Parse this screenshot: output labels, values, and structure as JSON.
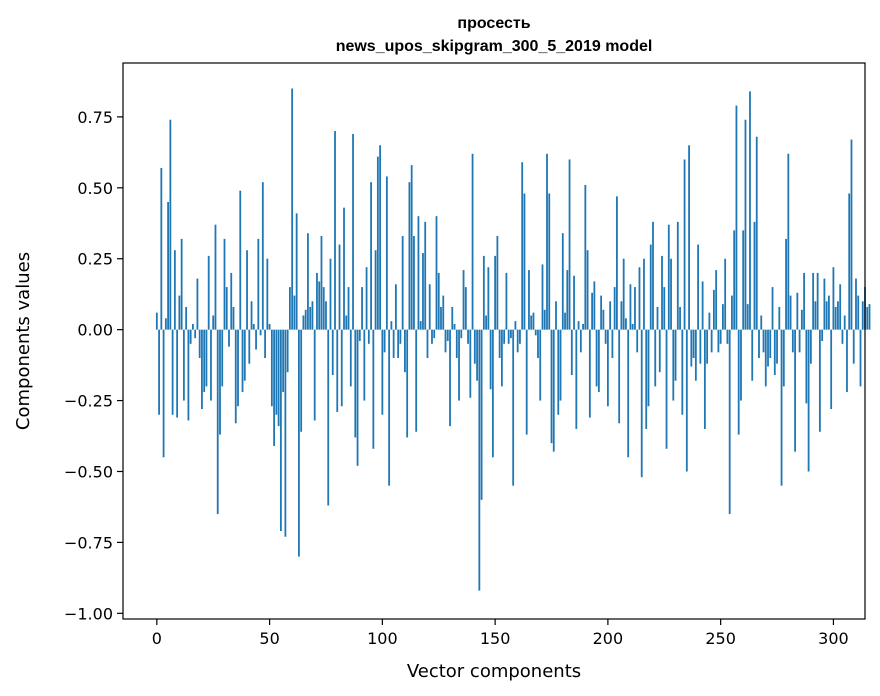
{
  "chart_data": {
    "type": "bar",
    "title_line1": "просесть",
    "title_line2": "news_upos_skipgram_300_5_2019 model",
    "xlabel": "Vector components",
    "ylabel": "Components values",
    "xlim": [
      -15,
      314
    ],
    "ylim": [
      -1.02,
      0.94
    ],
    "xticks": [
      0,
      50,
      100,
      150,
      200,
      250,
      300
    ],
    "yticks": [
      -1.0,
      -0.75,
      -0.5,
      -0.25,
      0.0,
      0.25,
      0.5,
      0.75
    ],
    "ytick_labels": [
      "−1.00",
      "−0.75",
      "−0.50",
      "−0.25",
      "0.00",
      "0.25",
      "0.50",
      "0.75"
    ],
    "bar_color": "#1f77b4",
    "grid": false,
    "values": [
      0.06,
      -0.3,
      0.57,
      -0.45,
      0.04,
      0.45,
      0.74,
      -0.3,
      0.28,
      -0.31,
      0.12,
      0.32,
      -0.25,
      0.08,
      -0.32,
      -0.05,
      0.02,
      -0.03,
      0.18,
      -0.1,
      -0.28,
      -0.22,
      -0.2,
      0.26,
      -0.25,
      0.05,
      0.37,
      -0.65,
      -0.37,
      -0.2,
      0.32,
      0.15,
      -0.06,
      0.2,
      0.08,
      -0.33,
      -0.27,
      0.49,
      -0.22,
      -0.18,
      0.28,
      -0.12,
      0.1,
      0.02,
      -0.07,
      0.32,
      -0.02,
      0.52,
      -0.1,
      0.25,
      0.02,
      -0.27,
      -0.41,
      -0.3,
      -0.34,
      -0.71,
      -0.22,
      -0.73,
      -0.15,
      0.15,
      0.85,
      0.12,
      0.41,
      -0.8,
      -0.36,
      0.05,
      0.07,
      0.34,
      0.08,
      0.1,
      -0.32,
      0.2,
      0.17,
      0.33,
      0.15,
      0.1,
      -0.62,
      0.25,
      -0.16,
      0.7,
      -0.29,
      0.3,
      -0.27,
      0.43,
      0.05,
      0.15,
      -0.2,
      0.69,
      -0.38,
      -0.48,
      -0.04,
      0.15,
      -0.25,
      0.22,
      -0.05,
      0.52,
      -0.42,
      0.28,
      0.61,
      0.65,
      -0.3,
      -0.08,
      0.54,
      -0.55,
      0.03,
      -0.1,
      0.16,
      -0.1,
      -0.05,
      0.33,
      -0.15,
      -0.38,
      0.52,
      0.58,
      0.33,
      -0.36,
      0.4,
      0.03,
      0.27,
      0.38,
      -0.1,
      0.16,
      -0.05,
      -0.03,
      0.4,
      0.2,
      0.08,
      0.12,
      -0.08,
      -0.04,
      -0.34,
      0.08,
      0.02,
      -0.1,
      -0.25,
      -0.03,
      0.21,
      0.15,
      -0.05,
      -0.24,
      0.62,
      -0.12,
      -0.18,
      -0.92,
      -0.6,
      0.26,
      0.05,
      0.22,
      -0.21,
      -0.45,
      0.26,
      0.33,
      -0.1,
      -0.2,
      -0.05,
      0.2,
      -0.05,
      -0.03,
      -0.55,
      0.03,
      -0.08,
      -0.05,
      0.59,
      0.48,
      -0.37,
      0.21,
      0.05,
      0.06,
      -0.02,
      -0.1,
      -0.25,
      0.23,
      0.07,
      0.62,
      0.48,
      -0.4,
      -0.43,
      0.1,
      -0.3,
      -0.25,
      0.34,
      0.06,
      0.21,
      0.6,
      -0.16,
      0.19,
      -0.35,
      0.03,
      -0.08,
      0.02,
      0.51,
      0.28,
      -0.31,
      0.13,
      0.17,
      -0.2,
      -0.22,
      0.12,
      0.07,
      -0.05,
      -0.27,
      0.1,
      -0.1,
      0.15,
      0.47,
      -0.33,
      0.1,
      0.25,
      0.04,
      -0.45,
      0.16,
      0.02,
      0.15,
      -0.08,
      0.22,
      -0.52,
      0.25,
      -0.35,
      -0.27,
      0.3,
      0.38,
      -0.2,
      0.08,
      -0.15,
      0.26,
      0.15,
      -0.42,
      0.37,
      0.25,
      -0.25,
      -0.18,
      0.38,
      0.08,
      -0.3,
      0.6,
      -0.5,
      0.65,
      -0.13,
      -0.1,
      -0.18,
      0.3,
      -0.12,
      0.17,
      -0.35,
      -0.12,
      0.06,
      -0.08,
      0.14,
      0.21,
      -0.08,
      -0.05,
      0.09,
      0.25,
      -0.05,
      -0.65,
      0.12,
      0.35,
      0.79,
      -0.37,
      -0.25,
      0.35,
      0.74,
      0.09,
      0.84,
      -0.18,
      0.38,
      0.68,
      -0.1,
      0.05,
      -0.08,
      -0.2,
      -0.13,
      -0.1,
      0.15,
      -0.16,
      -0.12,
      0.08,
      -0.55,
      -0.2,
      0.32,
      0.62,
      0.12,
      -0.08,
      -0.43,
      0.13,
      -0.08,
      0.07,
      0.2,
      -0.26,
      -0.5,
      -0.12,
      0.2,
      0.1,
      0.2,
      -0.36,
      -0.04,
      0.18,
      0.1,
      0.12,
      -0.28,
      0.22,
      0.08,
      0.1,
      0.16,
      -0.05,
      0.05,
      -0.22,
      0.48,
      0.67,
      -0.12,
      0.18,
      0.12,
      -0.2,
      0.1,
      0.15,
      0.08,
      0.09
    ]
  }
}
